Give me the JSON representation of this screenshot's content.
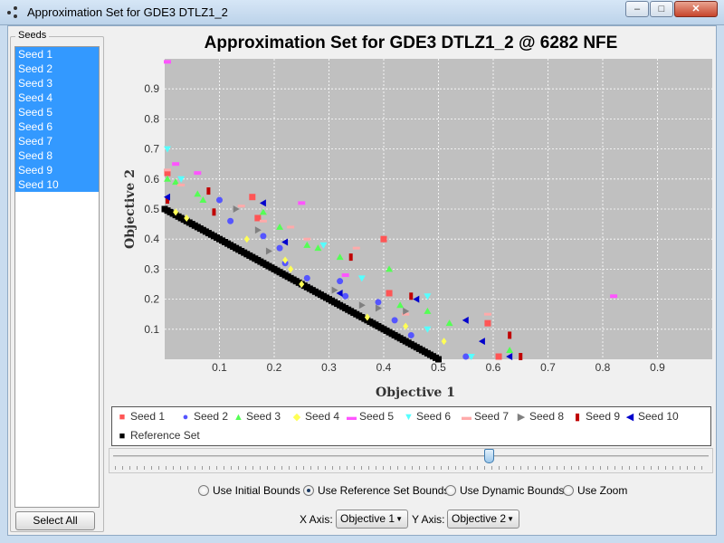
{
  "window": {
    "title": "Approximation Set for GDE3 DTLZ1_2",
    "min_glyph": "–",
    "max_glyph": "□",
    "close_glyph": "✕"
  },
  "sidebar": {
    "legend": "Seeds",
    "items": [
      {
        "label": "Seed 1"
      },
      {
        "label": "Seed 2"
      },
      {
        "label": "Seed 3"
      },
      {
        "label": "Seed 4"
      },
      {
        "label": "Seed 5"
      },
      {
        "label": "Seed 6"
      },
      {
        "label": "Seed 7"
      },
      {
        "label": "Seed 8"
      },
      {
        "label": "Seed 9"
      },
      {
        "label": "Seed 10"
      }
    ],
    "select_all_label": "Select All"
  },
  "chart_data": {
    "type": "scatter",
    "title": "Approximation Set for GDE3 DTLZ1_2 @ 6282 NFE",
    "xlabel": "Objective 1",
    "ylabel": "Objective 2",
    "xlim": [
      0,
      1.0
    ],
    "ylim": [
      0,
      1.0
    ],
    "xticks": [
      0.1,
      0.2,
      0.3,
      0.4,
      0.5,
      0.6,
      0.7,
      0.8,
      0.9
    ],
    "yticks": [
      0.1,
      0.2,
      0.3,
      0.4,
      0.5,
      0.6,
      0.7,
      0.8,
      0.9
    ],
    "grid": true,
    "plot_background": "#c0c0c0",
    "legend_position": "bottom",
    "series": [
      {
        "name": "Seed 1",
        "color": "#ff5555",
        "marker": "square",
        "points": [
          [
            0.0,
            0.62
          ],
          [
            0.16,
            0.54
          ],
          [
            0.17,
            0.47
          ],
          [
            0.4,
            0.4
          ],
          [
            0.41,
            0.22
          ],
          [
            0.59,
            0.12
          ],
          [
            0.61,
            0.0
          ]
        ]
      },
      {
        "name": "Seed 2",
        "color": "#5555ff",
        "marker": "circle",
        "points": [
          [
            0.1,
            0.53
          ],
          [
            0.12,
            0.46
          ],
          [
            0.18,
            0.41
          ],
          [
            0.21,
            0.37
          ],
          [
            0.22,
            0.32
          ],
          [
            0.26,
            0.27
          ],
          [
            0.32,
            0.26
          ],
          [
            0.33,
            0.21
          ],
          [
            0.39,
            0.19
          ],
          [
            0.42,
            0.13
          ],
          [
            0.45,
            0.08
          ],
          [
            0.55,
            0.0
          ]
        ]
      },
      {
        "name": "Seed 3",
        "color": "#55ff55",
        "marker": "triangle-up",
        "points": [
          [
            0.0,
            0.6
          ],
          [
            0.02,
            0.59
          ],
          [
            0.06,
            0.55
          ],
          [
            0.07,
            0.53
          ],
          [
            0.18,
            0.49
          ],
          [
            0.21,
            0.44
          ],
          [
            0.26,
            0.38
          ],
          [
            0.28,
            0.37
          ],
          [
            0.32,
            0.34
          ],
          [
            0.41,
            0.3
          ],
          [
            0.43,
            0.18
          ],
          [
            0.48,
            0.16
          ],
          [
            0.52,
            0.12
          ],
          [
            0.63,
            0.03
          ]
        ]
      },
      {
        "name": "Seed 4",
        "color": "#ffff55",
        "marker": "diamond",
        "points": [
          [
            0.02,
            0.49
          ],
          [
            0.04,
            0.47
          ],
          [
            0.15,
            0.4
          ],
          [
            0.22,
            0.33
          ],
          [
            0.23,
            0.3
          ],
          [
            0.25,
            0.25
          ],
          [
            0.37,
            0.14
          ],
          [
            0.44,
            0.11
          ],
          [
            0.51,
            0.06
          ]
        ]
      },
      {
        "name": "Seed 5",
        "color": "#ff55ff",
        "marker": "rect-h",
        "points": [
          [
            0.0,
            0.99
          ],
          [
            0.02,
            0.65
          ],
          [
            0.06,
            0.62
          ],
          [
            0.25,
            0.52
          ],
          [
            0.33,
            0.28
          ],
          [
            0.82,
            0.21
          ]
        ]
      },
      {
        "name": "Seed 6",
        "color": "#55ffff",
        "marker": "triangle-down",
        "points": [
          [
            0.0,
            0.7
          ],
          [
            0.03,
            0.6
          ],
          [
            0.29,
            0.38
          ],
          [
            0.36,
            0.27
          ],
          [
            0.48,
            0.21
          ],
          [
            0.48,
            0.1
          ],
          [
            0.56,
            0.0
          ]
        ]
      },
      {
        "name": "Seed 7",
        "color": "#ffaaaa",
        "marker": "dash",
        "points": [
          [
            0.0,
            0.63
          ],
          [
            0.03,
            0.58
          ],
          [
            0.14,
            0.51
          ],
          [
            0.18,
            0.46
          ],
          [
            0.23,
            0.44
          ],
          [
            0.26,
            0.4
          ],
          [
            0.35,
            0.37
          ],
          [
            0.44,
            0.15
          ],
          [
            0.59,
            0.15
          ]
        ]
      },
      {
        "name": "Seed 8",
        "color": "#808080",
        "marker": "triangle-right",
        "points": [
          [
            0.13,
            0.5
          ],
          [
            0.17,
            0.43
          ],
          [
            0.19,
            0.36
          ],
          [
            0.31,
            0.23
          ],
          [
            0.36,
            0.18
          ],
          [
            0.39,
            0.17
          ],
          [
            0.44,
            0.16
          ]
        ]
      },
      {
        "name": "Seed 9",
        "color": "#c00000",
        "marker": "rect-v",
        "points": [
          [
            0.0,
            0.53
          ],
          [
            0.08,
            0.56
          ],
          [
            0.09,
            0.49
          ],
          [
            0.34,
            0.34
          ],
          [
            0.45,
            0.21
          ],
          [
            0.63,
            0.08
          ],
          [
            0.65,
            0.0
          ]
        ]
      },
      {
        "name": "Seed 10",
        "color": "#0000cc",
        "marker": "triangle-left",
        "points": [
          [
            0.0,
            0.54
          ],
          [
            0.18,
            0.52
          ],
          [
            0.22,
            0.39
          ],
          [
            0.32,
            0.22
          ],
          [
            0.46,
            0.2
          ],
          [
            0.55,
            0.13
          ],
          [
            0.58,
            0.06
          ],
          [
            0.63,
            0.0
          ]
        ]
      },
      {
        "name": "Reference Set",
        "color": "#000000",
        "marker": "square",
        "line": [
          [
            0.0,
            0.5
          ],
          [
            0.5,
            0.0
          ]
        ],
        "count": 100
      }
    ]
  },
  "controls": {
    "slider_value": 0.63,
    "radios": [
      {
        "label": "Use Initial Bounds",
        "selected": false
      },
      {
        "label": "Use Reference Set Bounds",
        "selected": true
      },
      {
        "label": "Use Dynamic Bounds",
        "selected": false
      },
      {
        "label": "Use Zoom",
        "selected": false
      }
    ],
    "x_axis_label": "X Axis:",
    "x_axis_value": "Objective 1",
    "y_axis_label": "Y Axis:",
    "y_axis_value": "Objective 2"
  }
}
